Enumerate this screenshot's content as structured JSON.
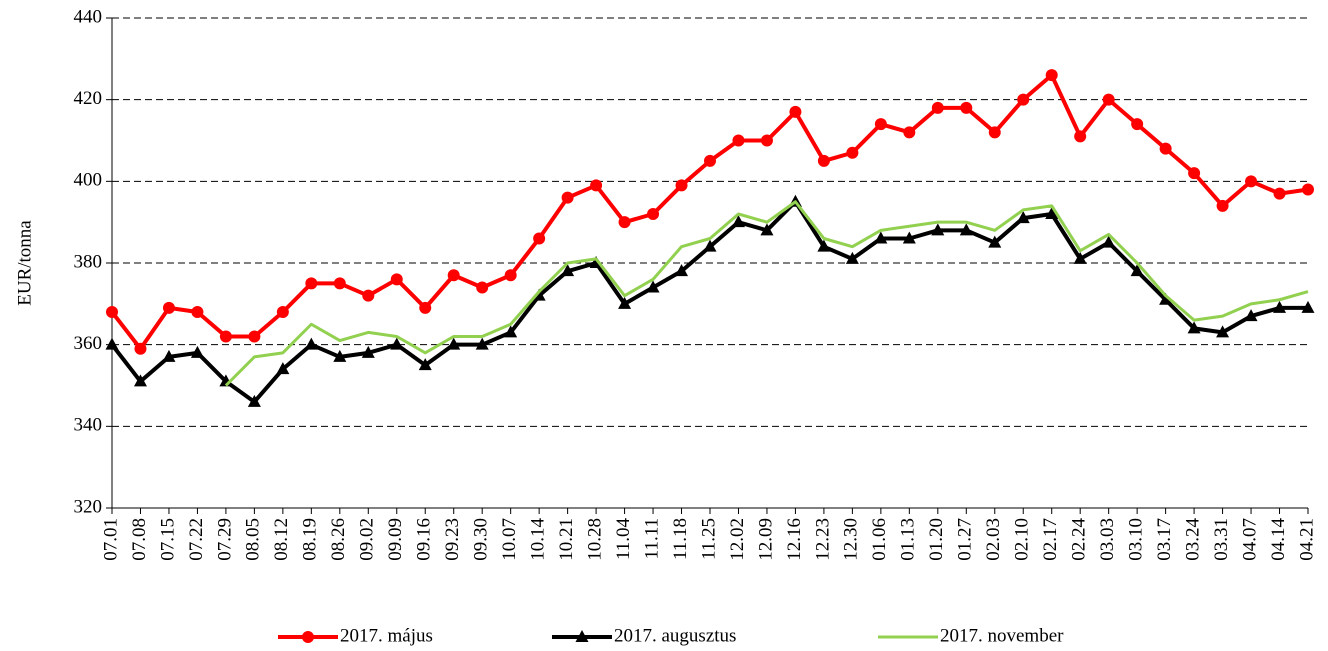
{
  "chart_data": {
    "type": "line",
    "y_label": "EUR/tonna",
    "categories": [
      "07.01",
      "07.08",
      "07.15",
      "07.22",
      "07.29",
      "08.05",
      "08.12",
      "08.19",
      "08.26",
      "09.02",
      "09.09",
      "09.16",
      "09.23",
      "09.30",
      "10.07",
      "10.14",
      "10.21",
      "10.28",
      "11.04",
      "11.11",
      "11.18",
      "11.25",
      "12.02",
      "12.09",
      "12.16",
      "12.23",
      "12.30",
      "01.06",
      "01.13",
      "01.20",
      "01.27",
      "02.03",
      "02.10",
      "02.17",
      "02.24",
      "03.03",
      "03.10",
      "03.17",
      "03.24",
      "03.31",
      "04.07",
      "04.14",
      "04.21"
    ],
    "series": [
      {
        "name": "2017. május",
        "color": "#ff0000",
        "marker": "circle",
        "values": [
          368,
          359,
          369,
          368,
          362,
          362,
          368,
          375,
          375,
          372,
          376,
          369,
          377,
          374,
          377,
          386,
          396,
          399,
          390,
          392,
          399,
          405,
          410,
          410,
          417,
          405,
          407,
          414,
          412,
          418,
          418,
          412,
          420,
          426,
          411,
          420,
          414,
          408,
          402,
          394,
          400,
          397,
          398
        ]
      },
      {
        "name": "2017. augusztus",
        "color": "#000000",
        "marker": "triangle",
        "values": [
          360,
          351,
          357,
          358,
          351,
          346,
          354,
          360,
          357,
          358,
          360,
          355,
          360,
          360,
          363,
          372,
          378,
          380,
          370,
          374,
          378,
          384,
          390,
          388,
          395,
          384,
          381,
          386,
          386,
          388,
          388,
          385,
          391,
          392,
          381,
          385,
          378,
          371,
          364,
          363,
          367,
          369,
          369
        ]
      },
      {
        "name": "2017. november",
        "color": "#92d050",
        "marker": "none",
        "values": [
          null,
          null,
          null,
          null,
          350,
          357,
          358,
          365,
          361,
          363,
          362,
          358,
          362,
          362,
          365,
          373,
          380,
          381,
          372,
          376,
          384,
          386,
          392,
          390,
          395,
          386,
          384,
          388,
          389,
          390,
          390,
          388,
          393,
          394,
          383,
          387,
          380,
          372,
          366,
          367,
          370,
          371,
          373
        ]
      }
    ],
    "ylim": [
      320,
      440
    ],
    "yticks": [
      320,
      340,
      360,
      380,
      400,
      420,
      440
    ],
    "grid": true,
    "legend": "bottom"
  }
}
